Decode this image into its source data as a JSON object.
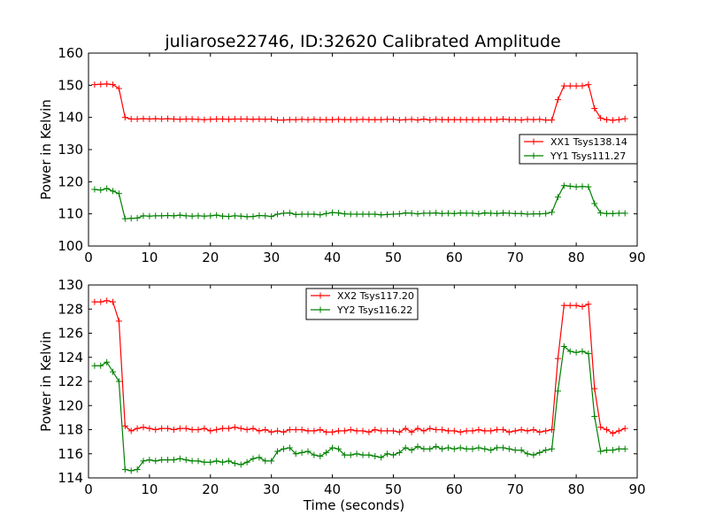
{
  "title": "juliarose22746, ID:32620 Calibrated Amplitude",
  "colors": {
    "red": "#ff0000",
    "green": "#008000"
  },
  "chart_data": [
    {
      "type": "line",
      "title": "juliarose22746, ID:32620 Calibrated Amplitude",
      "xlabel": "",
      "ylabel": "Power in Kelvin",
      "xlim": [
        0,
        90
      ],
      "ylim": [
        100,
        160
      ],
      "xticks": [
        0,
        10,
        20,
        30,
        40,
        50,
        60,
        70,
        80,
        90
      ],
      "yticks": [
        100,
        110,
        120,
        130,
        140,
        150,
        160
      ],
      "legend_position": "center-right",
      "x": [
        1,
        2,
        3,
        4,
        5,
        6,
        7,
        8,
        9,
        10,
        11,
        12,
        13,
        14,
        15,
        16,
        17,
        18,
        19,
        20,
        21,
        22,
        23,
        24,
        25,
        26,
        27,
        28,
        29,
        30,
        31,
        32,
        33,
        34,
        35,
        36,
        37,
        38,
        39,
        40,
        41,
        42,
        43,
        44,
        45,
        46,
        47,
        48,
        49,
        50,
        51,
        52,
        53,
        54,
        55,
        56,
        57,
        58,
        59,
        60,
        61,
        62,
        63,
        64,
        65,
        66,
        67,
        68,
        69,
        70,
        71,
        72,
        73,
        74,
        75,
        76,
        77,
        78,
        79,
        80,
        81,
        82,
        83,
        84,
        85,
        86,
        87,
        88
      ],
      "series": [
        {
          "name": "XX1 Tsys138.14",
          "color": "#ff0000",
          "values": [
            150.2,
            150.3,
            150.4,
            150.2,
            149.0,
            140.0,
            139.5,
            139.5,
            139.6,
            139.5,
            139.6,
            139.5,
            139.6,
            139.5,
            139.4,
            139.5,
            139.5,
            139.4,
            139.3,
            139.4,
            139.5,
            139.5,
            139.4,
            139.5,
            139.5,
            139.5,
            139.4,
            139.5,
            139.4,
            139.5,
            139.2,
            139.2,
            139.3,
            139.3,
            139.4,
            139.3,
            139.4,
            139.3,
            139.3,
            139.3,
            139.4,
            139.3,
            139.3,
            139.3,
            139.4,
            139.3,
            139.3,
            139.3,
            139.4,
            139.4,
            139.2,
            139.3,
            139.4,
            139.2,
            139.5,
            139.2,
            139.4,
            139.3,
            139.3,
            139.3,
            139.3,
            139.3,
            139.3,
            139.3,
            139.3,
            139.3,
            139.3,
            139.5,
            139.3,
            139.3,
            139.2,
            139.4,
            139.3,
            139.4,
            139.2,
            139.2,
            145.5,
            149.8,
            149.8,
            149.8,
            149.8,
            150.2,
            142.8,
            139.8,
            139.3,
            139.1,
            139.3,
            139.6
          ]
        },
        {
          "name": "YY1 Tsys111.27",
          "color": "#008000",
          "values": [
            117.6,
            117.4,
            117.9,
            117.1,
            116.3,
            108.5,
            108.6,
            108.7,
            109.4,
            109.3,
            109.4,
            109.4,
            109.5,
            109.4,
            109.6,
            109.4,
            109.3,
            109.4,
            109.3,
            109.4,
            109.6,
            109.3,
            109.2,
            109.4,
            109.3,
            109.1,
            109.2,
            109.5,
            109.4,
            109.2,
            109.9,
            110.2,
            110.3,
            109.8,
            109.9,
            109.9,
            109.9,
            109.7,
            110.1,
            110.4,
            110.3,
            110.0,
            109.9,
            109.9,
            109.9,
            109.9,
            109.9,
            109.7,
            109.8,
            109.9,
            110.0,
            110.3,
            110.2,
            110.0,
            110.2,
            110.2,
            110.3,
            110.1,
            110.2,
            110.1,
            110.3,
            110.2,
            110.2,
            110.0,
            110.3,
            110.2,
            110.1,
            110.3,
            110.2,
            110.1,
            110.1,
            109.9,
            110.0,
            110.0,
            110.1,
            110.5,
            115.2,
            118.8,
            118.6,
            118.4,
            118.5,
            118.4,
            113.2,
            110.3,
            110.1,
            110.1,
            110.2,
            110.2
          ]
        }
      ]
    },
    {
      "type": "line",
      "title": "",
      "xlabel": "Time (seconds)",
      "ylabel": "Power in Kelvin",
      "xlim": [
        0,
        90
      ],
      "ylim": [
        114,
        130
      ],
      "xticks": [
        0,
        10,
        20,
        30,
        40,
        50,
        60,
        70,
        80,
        90
      ],
      "yticks": [
        114,
        116,
        118,
        120,
        122,
        124,
        126,
        128,
        130
      ],
      "legend_position": "upper-center",
      "x": [
        1,
        2,
        3,
        4,
        5,
        6,
        7,
        8,
        9,
        10,
        11,
        12,
        13,
        14,
        15,
        16,
        17,
        18,
        19,
        20,
        21,
        22,
        23,
        24,
        25,
        26,
        27,
        28,
        29,
        30,
        31,
        32,
        33,
        34,
        35,
        36,
        37,
        38,
        39,
        40,
        41,
        42,
        43,
        44,
        45,
        46,
        47,
        48,
        49,
        50,
        51,
        52,
        53,
        54,
        55,
        56,
        57,
        58,
        59,
        60,
        61,
        62,
        63,
        64,
        65,
        66,
        67,
        68,
        69,
        70,
        71,
        72,
        73,
        74,
        75,
        76,
        77,
        78,
        79,
        80,
        81,
        82,
        83,
        84,
        85,
        86,
        87,
        88
      ],
      "series": [
        {
          "name": "XX2 Tsys117.20",
          "color": "#ff0000",
          "values": [
            128.6,
            128.6,
            128.7,
            128.6,
            127.0,
            118.3,
            117.9,
            118.1,
            118.2,
            118.1,
            118.0,
            118.1,
            118.1,
            118.0,
            118.1,
            118.1,
            118.0,
            118.0,
            118.1,
            117.9,
            118.0,
            118.1,
            118.1,
            118.2,
            118.1,
            118.0,
            118.1,
            117.9,
            118.0,
            117.8,
            117.9,
            117.8,
            118.0,
            118.0,
            118.0,
            117.9,
            117.9,
            118.0,
            117.8,
            117.8,
            117.9,
            117.9,
            118.0,
            117.9,
            117.9,
            117.8,
            118.0,
            117.9,
            117.9,
            117.9,
            117.8,
            118.1,
            117.8,
            118.1,
            117.9,
            118.1,
            118.0,
            118.0,
            117.9,
            117.9,
            117.8,
            117.9,
            117.9,
            118.0,
            117.9,
            117.9,
            118.0,
            118.0,
            117.8,
            117.9,
            118.0,
            117.9,
            118.0,
            117.8,
            117.9,
            118.0,
            123.9,
            128.3,
            128.3,
            128.3,
            128.2,
            128.4,
            121.4,
            118.2,
            118.0,
            117.7,
            117.9,
            118.1
          ]
        },
        {
          "name": "YY2 Tsys116.22",
          "color": "#008000",
          "values": [
            123.3,
            123.3,
            123.6,
            122.8,
            122.0,
            114.7,
            114.6,
            114.7,
            115.4,
            115.5,
            115.4,
            115.5,
            115.5,
            115.5,
            115.6,
            115.5,
            115.4,
            115.4,
            115.3,
            115.3,
            115.4,
            115.3,
            115.4,
            115.2,
            115.1,
            115.3,
            115.6,
            115.7,
            115.4,
            115.4,
            116.2,
            116.4,
            116.5,
            116.0,
            116.1,
            116.2,
            115.9,
            115.8,
            116.1,
            116.5,
            116.4,
            115.9,
            115.9,
            116.0,
            115.9,
            115.9,
            115.8,
            115.7,
            116.0,
            115.9,
            116.1,
            116.5,
            116.3,
            116.6,
            116.4,
            116.4,
            116.6,
            116.4,
            116.5,
            116.4,
            116.5,
            116.4,
            116.4,
            116.5,
            116.4,
            116.3,
            116.5,
            116.5,
            116.4,
            116.3,
            116.3,
            116.0,
            115.9,
            116.1,
            116.3,
            116.4,
            121.2,
            124.9,
            124.5,
            124.4,
            124.5,
            124.3,
            119.1,
            116.2,
            116.3,
            116.3,
            116.4,
            116.4
          ]
        }
      ]
    }
  ]
}
